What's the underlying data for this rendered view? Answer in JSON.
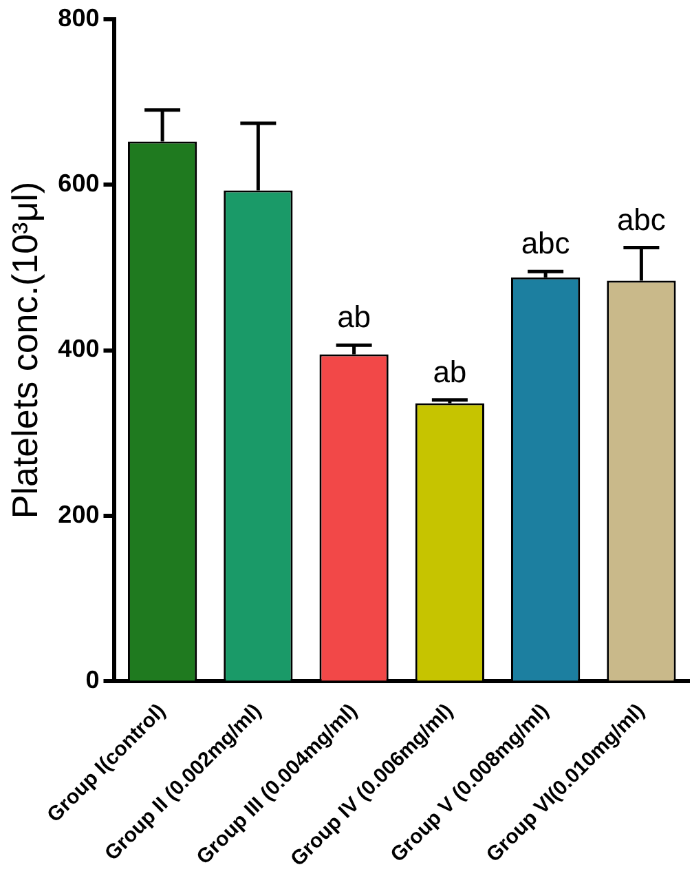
{
  "chart_data": {
    "type": "bar",
    "ylabel": "Platelets conc.(10³μl)",
    "categories": [
      "Group I(control)",
      "Group II (0.002mg/ml)",
      "Group III (0.004mg/ml)",
      "Group IV (0.006mg/ml)",
      "Group V (0.008mg/ml)",
      "Group VI(0.010mg/ml)"
    ],
    "values": [
      652,
      593,
      395,
      336,
      488,
      484
    ],
    "errors": [
      38,
      81,
      11,
      4,
      7,
      40
    ],
    "colors": [
      "#1f7a1f",
      "#1a9a68",
      "#f24848",
      "#c6c400",
      "#1c7fa0",
      "#c9b98a"
    ],
    "ylim": [
      0,
      800
    ],
    "yticks": [
      0,
      200,
      400,
      600,
      800
    ],
    "grid": false,
    "legend": false,
    "annotations": [
      {
        "text": "ab",
        "x": "Group III (0.004mg/ml)",
        "y": 406
      },
      {
        "text": "ab",
        "x": "Group IV (0.006mg/ml)",
        "y": 340
      },
      {
        "text": "abc",
        "x": "Group V (0.008mg/ml)",
        "y": 495
      },
      {
        "text": "abc",
        "x": "Group VI(0.010mg/ml)",
        "y": 524
      }
    ]
  }
}
